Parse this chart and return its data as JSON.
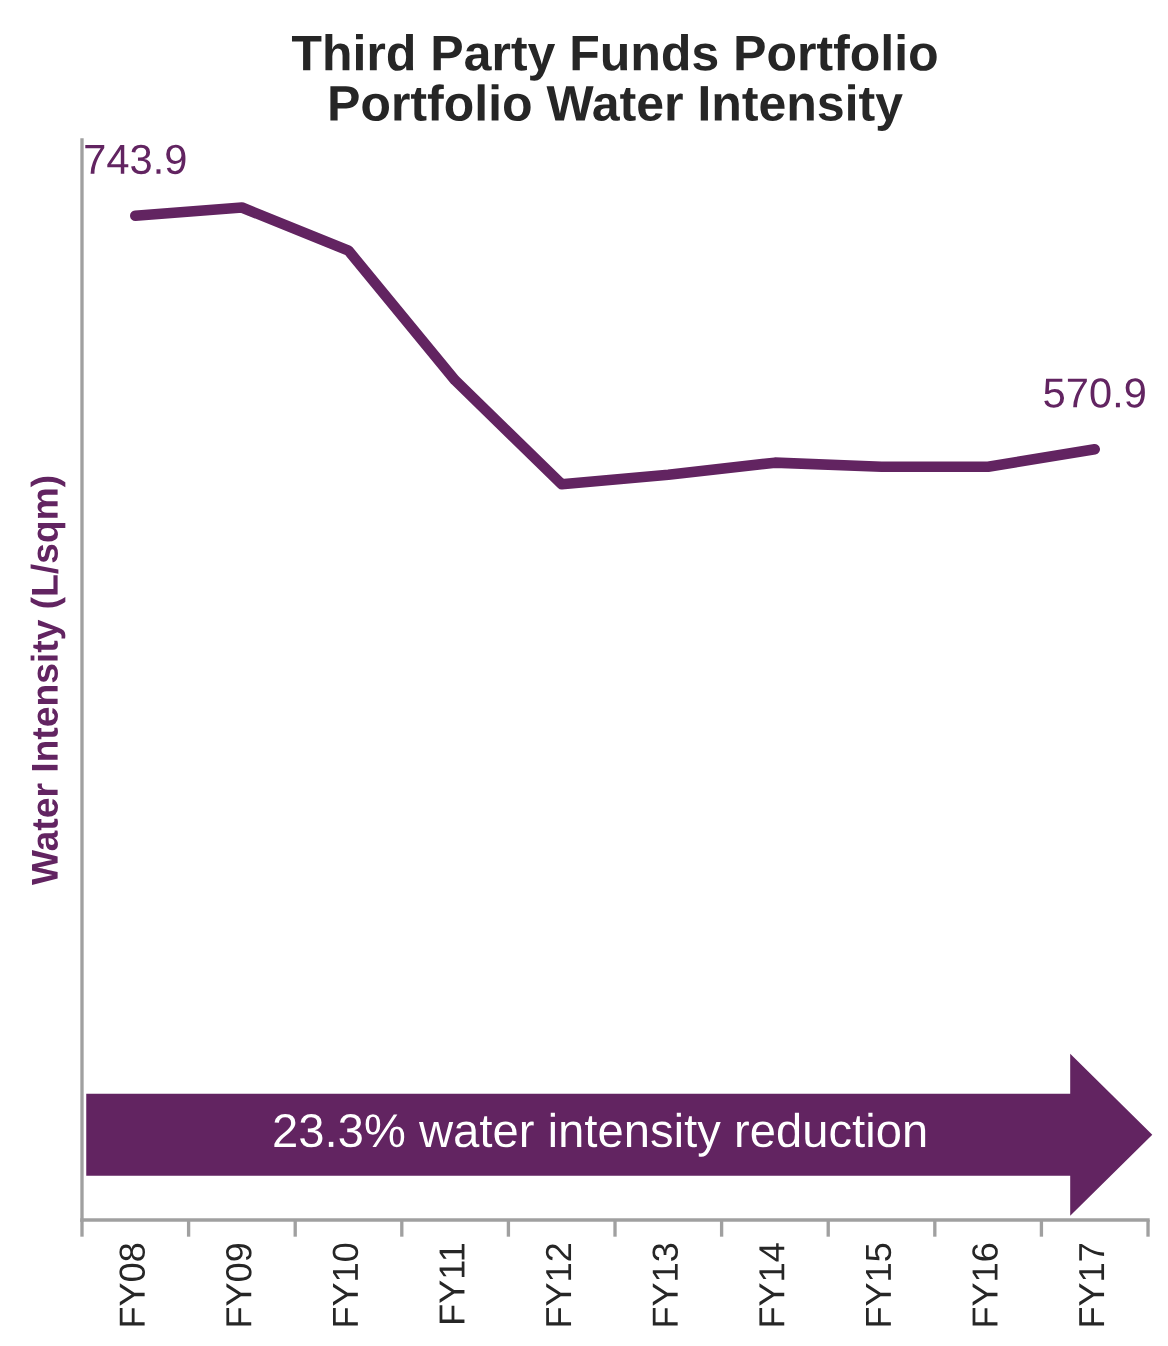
{
  "chart_data": {
    "type": "line",
    "title": "Third Party Funds Portfolio\nPortfolio Water Intensity",
    "ylabel": "Water Intensity (L/sqm)",
    "categories": [
      "FY08",
      "FY09",
      "FY10",
      "FY11",
      "FY12",
      "FY13",
      "FY14",
      "FY15",
      "FY16",
      "FY17"
    ],
    "series": [
      {
        "color": "#622461",
        "values": [
          743.9,
          750,
          718,
          622,
          545,
          552,
          561,
          558,
          558,
          570.9
        ],
        "value_labels": [
          "743.9",
          null,
          null,
          null,
          null,
          null,
          null,
          null,
          null,
          "570.9"
        ]
      }
    ],
    "ylim": [
      0,
      800
    ],
    "annotations": [
      "23.3% water intensity reduction"
    ],
    "grid": false,
    "tick_labels": "x",
    "marker": "none",
    "line_style": "solid"
  }
}
